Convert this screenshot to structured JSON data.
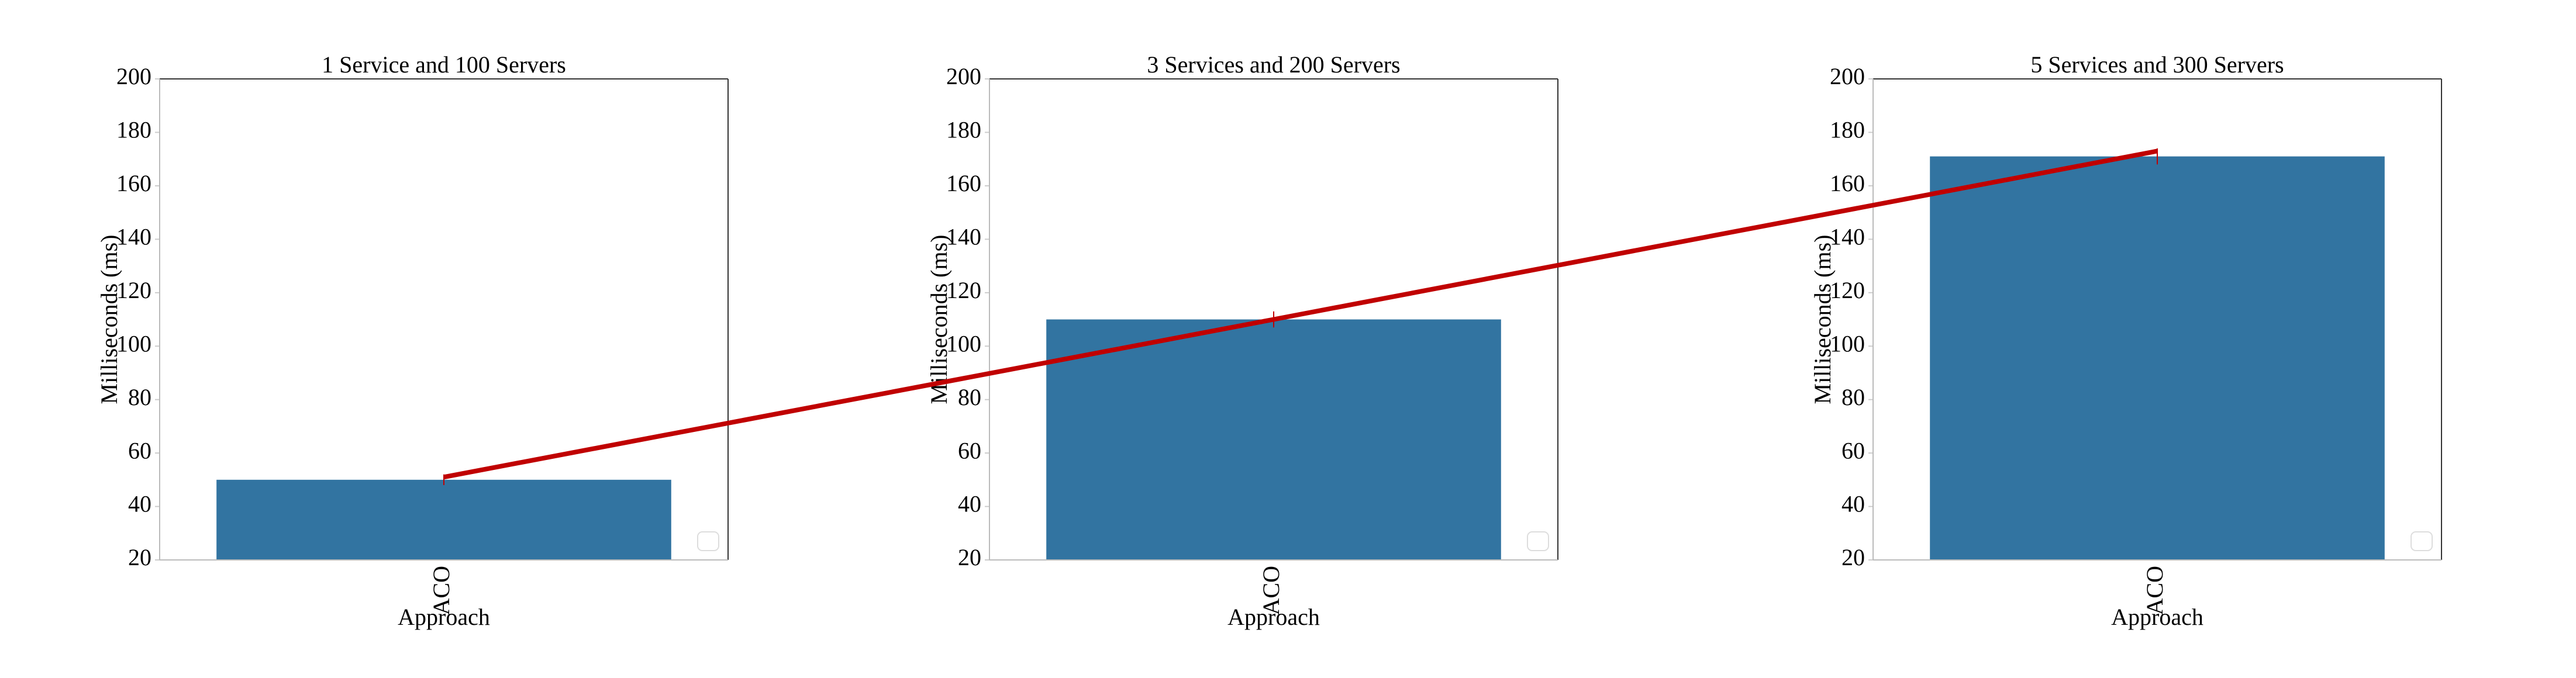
{
  "chart_data": [
    {
      "type": "bar",
      "title": "1 Service and 100 Servers",
      "x_label": "Approach",
      "y_label": "Milliseconds (ms)",
      "categories": [
        "ACO"
      ],
      "values": [
        50
      ],
      "errors": [
        2
      ],
      "color": "#3274a1",
      "line_values": [
        51
      ],
      "line_color": "#c00000",
      "ylim": [
        20,
        200
      ],
      "yticks": [
        20,
        40,
        60,
        80,
        100,
        120,
        140,
        160,
        180,
        200
      ]
    },
    {
      "type": "bar",
      "title": "3 Services and 200 Servers",
      "x_label": "Approach",
      "y_label": "Milliseconds (ms)",
      "categories": [
        "ACO"
      ],
      "values": [
        110
      ],
      "errors": [
        3
      ],
      "color": "#3274a1",
      "line_values": [
        110
      ],
      "line_color": "#c00000",
      "ylim": [
        20,
        200
      ],
      "yticks": [
        20,
        40,
        60,
        80,
        100,
        120,
        140,
        160,
        180,
        200
      ]
    },
    {
      "type": "bar",
      "title": "5 Services and 300 Servers",
      "x_label": "Approach",
      "y_label": "Milliseconds (ms)",
      "categories": [
        "ACO"
      ],
      "values": [
        171
      ],
      "errors": [
        3
      ],
      "color": "#3274a1",
      "line_values": [
        173
      ],
      "line_color": "#c00000",
      "ylim": [
        20,
        200
      ],
      "yticks": [
        20,
        40,
        60,
        80,
        100,
        120,
        140,
        160,
        180,
        200
      ]
    }
  ]
}
